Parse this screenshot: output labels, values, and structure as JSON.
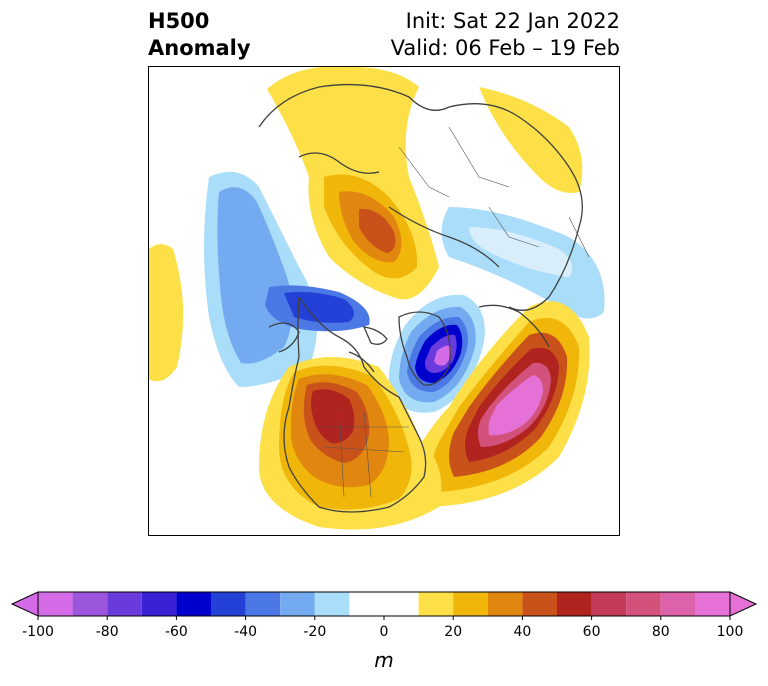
{
  "header": {
    "title_line1": "H500",
    "title_line2": "Anomaly",
    "init": "Init: Sat 22 Jan 2022",
    "valid": "Valid: 06 Feb – 19 Feb"
  },
  "colorbar": {
    "units": "m",
    "ticks": [
      "-100",
      "-80",
      "-60",
      "-40",
      "-20",
      "0",
      "20",
      "40",
      "60",
      "80",
      "100"
    ],
    "levels": [
      -100,
      -90,
      -80,
      -70,
      -60,
      -50,
      -40,
      -30,
      -20,
      -10,
      10,
      20,
      30,
      40,
      50,
      60,
      70,
      80,
      90,
      100
    ],
    "colors": [
      "#d46be6",
      "#9c56dd",
      "#6a3bdc",
      "#3a21d6",
      "#0000cd",
      "#2341d7",
      "#4c78e6",
      "#74abf0",
      "#a9ddfa",
      "#ffffff",
      "#fde047",
      "#f1b60a",
      "#e1870f",
      "#c8521a",
      "#b0231f",
      "#c23a55",
      "#d2527c",
      "#dd62aa",
      "#e671d6"
    ]
  }
}
